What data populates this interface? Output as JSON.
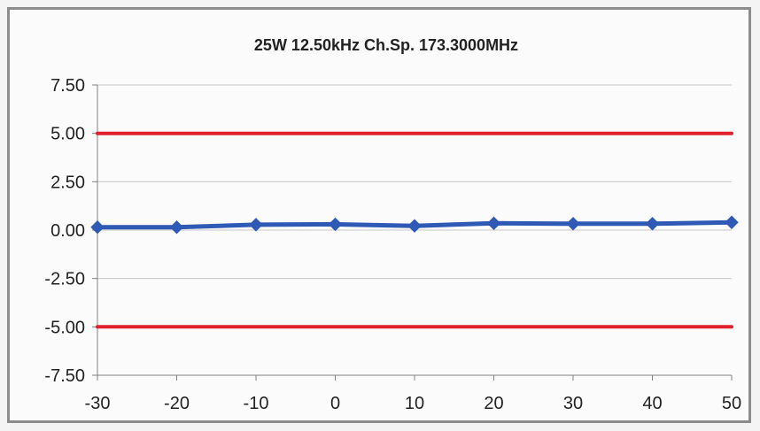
{
  "chart_data": {
    "type": "line",
    "title": "25W  12.50kHz Ch.Sp. 173.3000MHz",
    "xlabel": "",
    "ylabel": "",
    "x": [
      -30,
      -20,
      -10,
      0,
      10,
      20,
      30,
      40,
      50
    ],
    "xticks": [
      "-30",
      "-20",
      "-10",
      "0",
      "10",
      "20",
      "30",
      "40",
      "50"
    ],
    "yticks": [
      "7.50",
      "5.00",
      "2.50",
      "0.00",
      "-2.50",
      "-5.00",
      "-7.50"
    ],
    "xlim": [
      -30,
      50
    ],
    "ylim": [
      -7.5,
      7.5
    ],
    "grid": true,
    "legend": "none",
    "series": [
      {
        "role": "measurement",
        "color": "#2e59b5",
        "marker": "diamond",
        "values": [
          0.15,
          0.15,
          0.28,
          0.3,
          0.22,
          0.35,
          0.33,
          0.33,
          0.4
        ]
      },
      {
        "role": "upper-limit",
        "color": "#e0202e",
        "marker": "none",
        "values": [
          5,
          5,
          5,
          5,
          5,
          5,
          5,
          5,
          5
        ]
      },
      {
        "role": "lower-limit",
        "color": "#e0202e",
        "marker": "none",
        "values": [
          -5,
          -5,
          -5,
          -5,
          -5,
          -5,
          -5,
          -5,
          -5
        ]
      }
    ]
  }
}
